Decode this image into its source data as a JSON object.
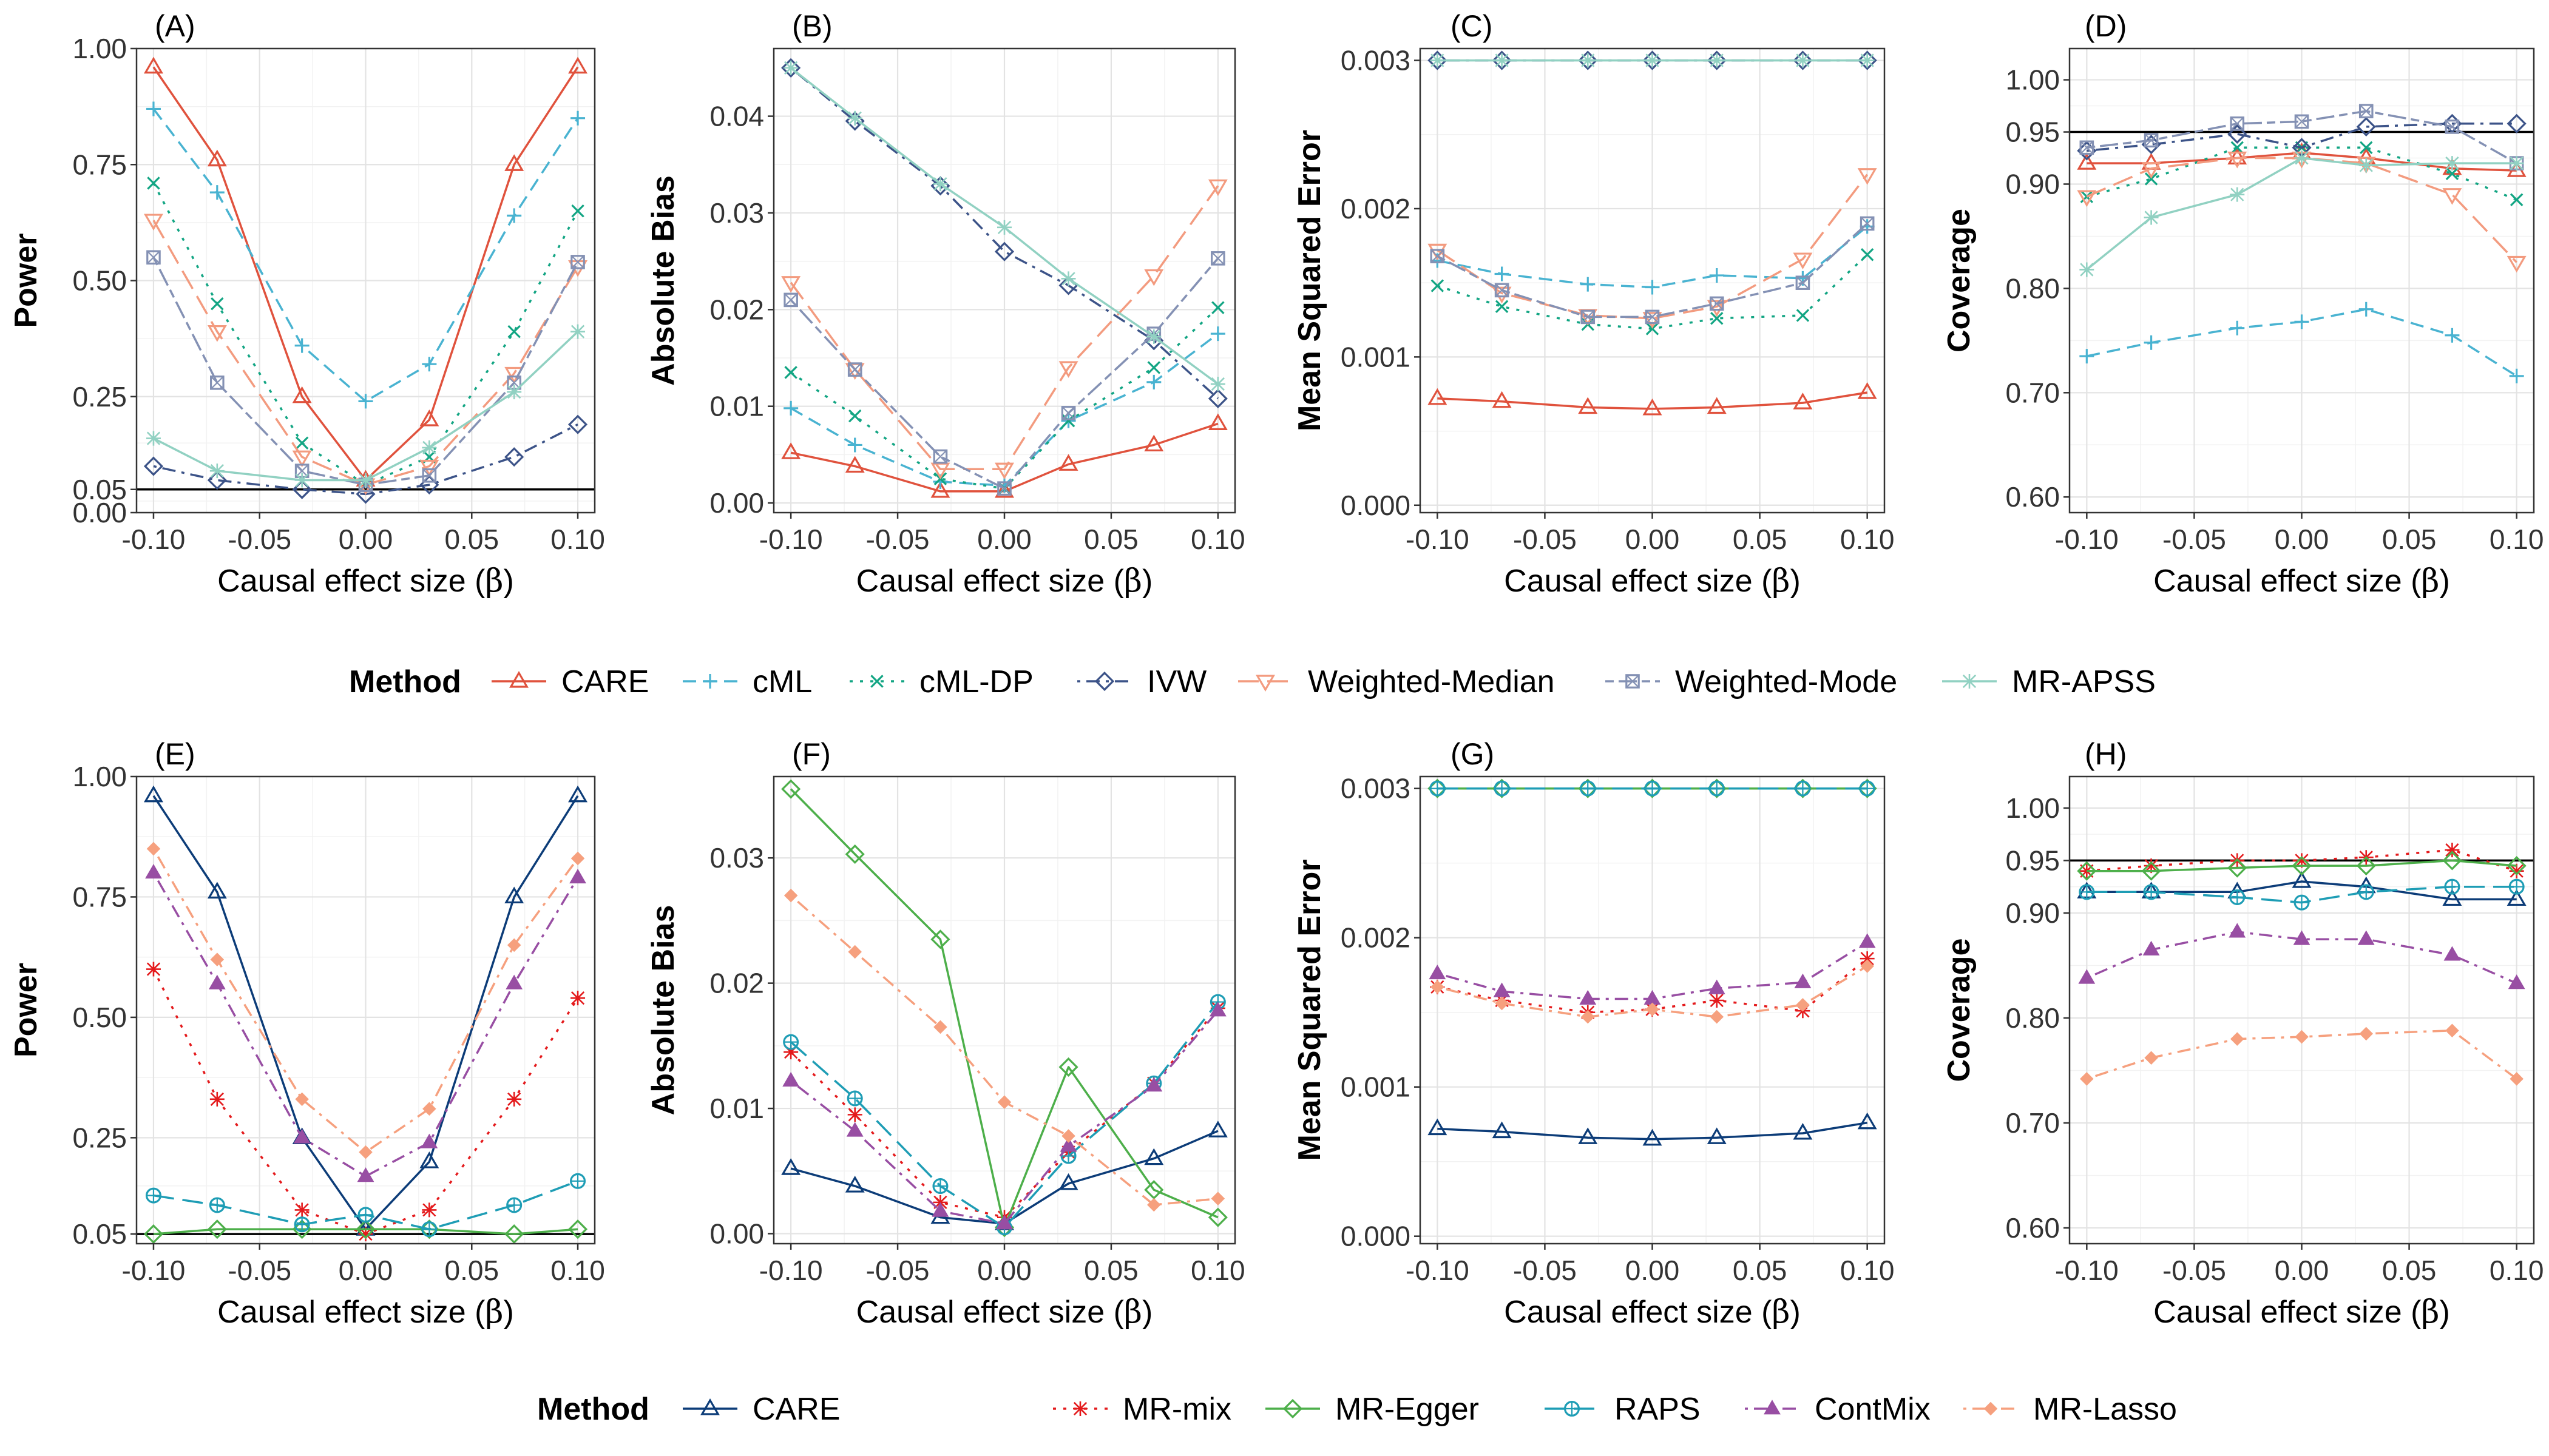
{
  "figure": {
    "legend_title": "Method",
    "x_label_prefix": "Causal effect size (",
    "x_label_symbol": "β",
    "x_label_suffix": ")"
  },
  "colors": {
    "CARE_top": "#E0523D",
    "cML": "#49B3D1",
    "cML-DP": "#12A583",
    "IVW": "#3C5388",
    "Weighted-Median": "#F39B7F",
    "Weighted-Mode": "#8491B4",
    "MR-APSS": "#91D1C2",
    "CARE_bottom": "#0C3C78",
    "MR-mix": "#E41A1C",
    "MR-Egger": "#4DAF4A",
    "RAPS": "#1E9DB5",
    "ContMix": "#984EA3",
    "MR-Lasso": "#F6A07E",
    "reference_line": "#000000"
  },
  "legends": [
    {
      "row": "top",
      "items": [
        {
          "name": "CARE",
          "color_key": "CARE_top",
          "marker": "triangle-up",
          "dash": "solid"
        },
        {
          "name": "cML",
          "color_key": "cML",
          "marker": "plus",
          "dash": "dashed"
        },
        {
          "name": "cML-DP",
          "color_key": "cML-DP",
          "marker": "x",
          "dash": "dotted"
        },
        {
          "name": "IVW",
          "color_key": "IVW",
          "marker": "diamond",
          "dash": "dotdash"
        },
        {
          "name": "Weighted-Median",
          "color_key": "Weighted-Median",
          "marker": "triangle-down",
          "dash": "longdash"
        },
        {
          "name": "Weighted-Mode",
          "color_key": "Weighted-Mode",
          "marker": "square-x",
          "dash": "twodash"
        },
        {
          "name": "MR-APSS",
          "color_key": "MR-APSS",
          "marker": "asterisk",
          "dash": "solid"
        }
      ]
    },
    {
      "row": "bottom",
      "items": [
        {
          "name": "CARE",
          "color_key": "CARE_bottom",
          "marker": "triangle-up",
          "dash": "solid"
        },
        {
          "name": "MR-mix",
          "color_key": "MR-mix",
          "marker": "asterisk",
          "dash": "dotted"
        },
        {
          "name": "MR-Egger",
          "color_key": "MR-Egger",
          "marker": "diamond",
          "dash": "solid"
        },
        {
          "name": "RAPS",
          "color_key": "RAPS",
          "marker": "circle-plus",
          "dash": "longdash"
        },
        {
          "name": "ContMix",
          "color_key": "ContMix",
          "marker": "filled-triangle",
          "dash": "dotdash"
        },
        {
          "name": "MR-Lasso",
          "color_key": "MR-Lasso",
          "marker": "filled-diamond",
          "dash": "dotdash"
        }
      ]
    }
  ],
  "chart_data": [
    {
      "panel": "(A)",
      "type": "line",
      "ylabel": "Power",
      "ylim": [
        0,
        1
      ],
      "yticks": [
        0.0,
        0.05,
        0.25,
        0.5,
        0.75,
        1.0
      ],
      "ytick_labels": [
        "0.00",
        "0.05",
        "0.25",
        "0.50",
        "0.75",
        "1.00"
      ],
      "hline": 0.05,
      "x": [
        -0.1,
        -0.07,
        -0.03,
        0,
        0.03,
        0.07,
        0.1
      ],
      "xtick_labels": [
        "-0.10",
        "-0.05",
        "0.00",
        "0.05",
        "0.10"
      ],
      "series": [
        {
          "name": "CARE",
          "values": [
            0.96,
            0.76,
            0.25,
            0.07,
            0.2,
            0.75,
            0.96
          ]
        },
        {
          "name": "cML",
          "values": [
            0.87,
            0.69,
            0.36,
            0.24,
            0.32,
            0.64,
            0.85
          ]
        },
        {
          "name": "cML-DP",
          "values": [
            0.71,
            0.45,
            0.15,
            0.06,
            0.12,
            0.39,
            0.65
          ]
        },
        {
          "name": "IVW",
          "values": [
            0.1,
            0.07,
            0.05,
            0.04,
            0.06,
            0.12,
            0.19
          ]
        },
        {
          "name": "Weighted-Median",
          "values": [
            0.63,
            0.39,
            0.12,
            0.06,
            0.1,
            0.3,
            0.53
          ]
        },
        {
          "name": "Weighted-Mode",
          "values": [
            0.55,
            0.28,
            0.09,
            0.06,
            0.08,
            0.28,
            0.54
          ]
        },
        {
          "name": "MR-APSS",
          "values": [
            0.16,
            0.09,
            0.07,
            0.07,
            0.14,
            0.26,
            0.39
          ]
        }
      ]
    },
    {
      "panel": "(B)",
      "type": "line",
      "ylabel": "Absolute Bias",
      "ylim": [
        -0.001,
        0.047
      ],
      "yticks": [
        0.0,
        0.01,
        0.02,
        0.03,
        0.04
      ],
      "ytick_labels": [
        "0.00",
        "0.01",
        "0.02",
        "0.03",
        "0.04"
      ],
      "x": [
        -0.1,
        -0.07,
        -0.03,
        0,
        0.03,
        0.07,
        0.1
      ],
      "xtick_labels": [
        "-0.10",
        "-0.05",
        "0.00",
        "0.05",
        "0.10"
      ],
      "series": [
        {
          "name": "CARE",
          "values": [
            0.0052,
            0.0038,
            0.0012,
            0.0012,
            0.004,
            0.006,
            0.0082
          ]
        },
        {
          "name": "cML",
          "values": [
            0.0098,
            0.006,
            0.0022,
            0.0018,
            0.0085,
            0.0125,
            0.0175
          ]
        },
        {
          "name": "cML-DP",
          "values": [
            0.0135,
            0.009,
            0.0025,
            0.0015,
            0.0085,
            0.014,
            0.0202
          ]
        },
        {
          "name": "IVW",
          "values": [
            0.045,
            0.0395,
            0.0328,
            0.026,
            0.0225,
            0.0168,
            0.0108
          ]
        },
        {
          "name": "Weighted-Median",
          "values": [
            0.0228,
            0.0138,
            0.0035,
            0.0035,
            0.014,
            0.0235,
            0.0328
          ]
        },
        {
          "name": "Weighted-Mode",
          "values": [
            0.021,
            0.0138,
            0.0048,
            0.0015,
            0.0093,
            0.0175,
            0.0253
          ]
        },
        {
          "name": "MR-APSS",
          "values": [
            0.045,
            0.0398,
            0.033,
            0.0285,
            0.0232,
            0.0172,
            0.0123
          ]
        }
      ]
    },
    {
      "panel": "(C)",
      "type": "line",
      "ylabel": "Mean Squared Error",
      "ylim": [
        -5e-05,
        0.00308
      ],
      "yticks": [
        0.0,
        0.001,
        0.002,
        0.003
      ],
      "ytick_labels": [
        "0.000",
        "0.001",
        "0.002",
        "0.003"
      ],
      "x": [
        -0.1,
        -0.07,
        -0.03,
        0,
        0.03,
        0.07,
        0.1
      ],
      "xtick_labels": [
        "-0.10",
        "-0.05",
        "0.00",
        "0.05",
        "0.10"
      ],
      "series": [
        {
          "name": "CARE",
          "values": [
            0.00072,
            0.0007,
            0.00066,
            0.00065,
            0.00066,
            0.00069,
            0.00076
          ]
        },
        {
          "name": "cML",
          "values": [
            0.00165,
            0.00156,
            0.00149,
            0.00147,
            0.00155,
            0.00153,
            0.00188
          ]
        },
        {
          "name": "cML-DP",
          "values": [
            0.00148,
            0.00134,
            0.00122,
            0.00119,
            0.00126,
            0.00128,
            0.00169
          ]
        },
        {
          "name": "IVW",
          "values": [
            0.003,
            0.003,
            0.003,
            0.003,
            0.003,
            0.003,
            0.003
          ]
        },
        {
          "name": "Weighted-Median",
          "values": [
            0.00172,
            0.00143,
            0.00128,
            0.00126,
            0.00134,
            0.00166,
            0.00223
          ]
        },
        {
          "name": "Weighted-Mode",
          "values": [
            0.00168,
            0.00145,
            0.00127,
            0.00127,
            0.00136,
            0.0015,
            0.0019
          ]
        },
        {
          "name": "MR-APSS",
          "values": [
            0.003,
            0.003,
            0.003,
            0.003,
            0.003,
            0.003,
            0.003
          ]
        }
      ]
    },
    {
      "panel": "(D)",
      "type": "line",
      "ylabel": "Coverage",
      "ylim": [
        0.585,
        1.03
      ],
      "yticks": [
        0.6,
        0.7,
        0.8,
        0.9,
        0.95,
        1.0
      ],
      "ytick_labels": [
        "0.60",
        "0.70",
        "0.80",
        "0.90",
        "0.95",
        "1.00"
      ],
      "hline": 0.95,
      "x": [
        -0.1,
        -0.07,
        -0.03,
        0,
        0.03,
        0.07,
        0.1
      ],
      "xtick_labels": [
        "-0.10",
        "-0.05",
        "0.00",
        "0.05",
        "0.10"
      ],
      "series": [
        {
          "name": "CARE",
          "values": [
            0.92,
            0.92,
            0.925,
            0.93,
            0.925,
            0.915,
            0.913
          ]
        },
        {
          "name": "cML",
          "values": [
            0.735,
            0.748,
            0.762,
            0.768,
            0.78,
            0.755,
            0.716
          ]
        },
        {
          "name": "cML-DP",
          "values": [
            0.888,
            0.905,
            0.935,
            0.935,
            0.935,
            0.91,
            0.885
          ]
        },
        {
          "name": "IVW",
          "values": [
            0.932,
            0.938,
            0.948,
            0.935,
            0.955,
            0.958,
            0.958
          ]
        },
        {
          "name": "Weighted-Median",
          "values": [
            0.888,
            0.915,
            0.925,
            0.925,
            0.92,
            0.89,
            0.825
          ]
        },
        {
          "name": "Weighted-Mode",
          "values": [
            0.935,
            0.942,
            0.958,
            0.96,
            0.97,
            0.955,
            0.92
          ]
        },
        {
          "name": "MR-APSS",
          "values": [
            0.818,
            0.868,
            0.89,
            0.925,
            0.918,
            0.92,
            0.92
          ]
        }
      ]
    },
    {
      "panel": "(E)",
      "type": "line",
      "ylabel": "Power",
      "ylim": [
        0.03,
        1.0
      ],
      "yticks": [
        0.05,
        0.25,
        0.5,
        0.75,
        1.0
      ],
      "ytick_labels": [
        "0.05",
        "0.25",
        "0.50",
        "0.75",
        "1.00"
      ],
      "hline": 0.05,
      "x": [
        -0.1,
        -0.07,
        -0.03,
        0,
        0.03,
        0.07,
        0.1
      ],
      "xtick_labels": [
        "-0.10",
        "-0.05",
        "0.00",
        "0.05",
        "0.10"
      ],
      "series": [
        {
          "name": "CARE",
          "values": [
            0.96,
            0.76,
            0.25,
            0.06,
            0.2,
            0.75,
            0.96
          ]
        },
        {
          "name": "MR-mix",
          "values": [
            0.6,
            0.33,
            0.1,
            0.05,
            0.1,
            0.33,
            0.54
          ]
        },
        {
          "name": "MR-Egger",
          "values": [
            0.05,
            0.06,
            0.06,
            0.06,
            0.06,
            0.05,
            0.06
          ]
        },
        {
          "name": "RAPS",
          "values": [
            0.13,
            0.11,
            0.07,
            0.09,
            0.06,
            0.11,
            0.16
          ]
        },
        {
          "name": "ContMix",
          "values": [
            0.8,
            0.57,
            0.25,
            0.17,
            0.24,
            0.57,
            0.79
          ]
        },
        {
          "name": "MR-Lasso",
          "values": [
            0.85,
            0.62,
            0.33,
            0.22,
            0.31,
            0.65,
            0.83
          ]
        }
      ]
    },
    {
      "panel": "(F)",
      "type": "line",
      "ylabel": "Absolute Bias",
      "ylim": [
        -0.0008,
        0.0365
      ],
      "yticks": [
        0.0,
        0.01,
        0.02,
        0.03
      ],
      "ytick_labels": [
        "0.00",
        "0.01",
        "0.02",
        "0.03"
      ],
      "x": [
        -0.1,
        -0.07,
        -0.03,
        0,
        0.03,
        0.07,
        0.1
      ],
      "xtick_labels": [
        "-0.10",
        "-0.05",
        "0.00",
        "0.05",
        "0.10"
      ],
      "series": [
        {
          "name": "CARE",
          "values": [
            0.0052,
            0.0038,
            0.0013,
            0.0008,
            0.004,
            0.006,
            0.0082
          ]
        },
        {
          "name": "MR-mix",
          "values": [
            0.0145,
            0.0095,
            0.0025,
            0.0013,
            0.0065,
            0.012,
            0.018
          ]
        },
        {
          "name": "MR-Egger",
          "values": [
            0.0355,
            0.0303,
            0.0235,
            0.0005,
            0.0133,
            0.0035,
            0.0013
          ]
        },
        {
          "name": "RAPS",
          "values": [
            0.0153,
            0.0108,
            0.0038,
            0.0005,
            0.0062,
            0.012,
            0.0185
          ]
        },
        {
          "name": "ContMix",
          "values": [
            0.0122,
            0.0082,
            0.0018,
            0.0008,
            0.007,
            0.0118,
            0.0178
          ]
        },
        {
          "name": "MR-Lasso",
          "values": [
            0.027,
            0.0225,
            0.0165,
            0.0105,
            0.0078,
            0.0023,
            0.0028
          ]
        }
      ]
    },
    {
      "panel": "(G)",
      "type": "line",
      "ylabel": "Mean Squared Error",
      "ylim": [
        -5e-05,
        0.00308
      ],
      "yticks": [
        0.0,
        0.001,
        0.002,
        0.003
      ],
      "ytick_labels": [
        "0.000",
        "0.001",
        "0.002",
        "0.003"
      ],
      "x": [
        -0.1,
        -0.07,
        -0.03,
        0,
        0.03,
        0.07,
        0.1
      ],
      "xtick_labels": [
        "-0.10",
        "-0.05",
        "0.00",
        "0.05",
        "0.10"
      ],
      "series": [
        {
          "name": "CARE",
          "values": [
            0.00072,
            0.0007,
            0.00066,
            0.00065,
            0.00066,
            0.00069,
            0.00076
          ]
        },
        {
          "name": "MR-mix",
          "values": [
            0.00167,
            0.00158,
            0.0015,
            0.00152,
            0.00158,
            0.00151,
            0.00186
          ]
        },
        {
          "name": "MR-Egger",
          "values": [
            0.003,
            0.003,
            0.003,
            0.003,
            0.003,
            0.003,
            0.003
          ]
        },
        {
          "name": "RAPS",
          "values": [
            0.003,
            0.003,
            0.003,
            0.003,
            0.003,
            0.003,
            0.003
          ]
        },
        {
          "name": "ContMix",
          "values": [
            0.00176,
            0.00164,
            0.00159,
            0.00159,
            0.00166,
            0.0017,
            0.00197
          ]
        },
        {
          "name": "MR-Lasso",
          "values": [
            0.00167,
            0.00156,
            0.00147,
            0.00152,
            0.00147,
            0.00155,
            0.00181
          ]
        }
      ]
    },
    {
      "panel": "(H)",
      "type": "line",
      "ylabel": "Coverage",
      "ylim": [
        0.585,
        1.03
      ],
      "yticks": [
        0.6,
        0.7,
        0.8,
        0.9,
        0.95,
        1.0
      ],
      "ytick_labels": [
        "0.60",
        "0.70",
        "0.80",
        "0.90",
        "0.95",
        "1.00"
      ],
      "hline": 0.95,
      "x": [
        -0.1,
        -0.07,
        -0.03,
        0,
        0.03,
        0.07,
        0.1
      ],
      "xtick_labels": [
        "-0.10",
        "-0.05",
        "0.00",
        "0.05",
        "0.10"
      ],
      "series": [
        {
          "name": "CARE",
          "values": [
            0.92,
            0.92,
            0.92,
            0.93,
            0.925,
            0.913,
            0.913
          ]
        },
        {
          "name": "MR-mix",
          "values": [
            0.94,
            0.945,
            0.95,
            0.95,
            0.953,
            0.96,
            0.94
          ]
        },
        {
          "name": "MR-Egger",
          "values": [
            0.94,
            0.94,
            0.943,
            0.945,
            0.945,
            0.95,
            0.945
          ]
        },
        {
          "name": "RAPS",
          "values": [
            0.92,
            0.92,
            0.915,
            0.91,
            0.92,
            0.925,
            0.925
          ]
        },
        {
          "name": "ContMix",
          "values": [
            0.838,
            0.865,
            0.882,
            0.875,
            0.875,
            0.86,
            0.833
          ]
        },
        {
          "name": "MR-Lasso",
          "values": [
            0.742,
            0.762,
            0.78,
            0.782,
            0.785,
            0.788,
            0.742
          ]
        }
      ]
    }
  ]
}
